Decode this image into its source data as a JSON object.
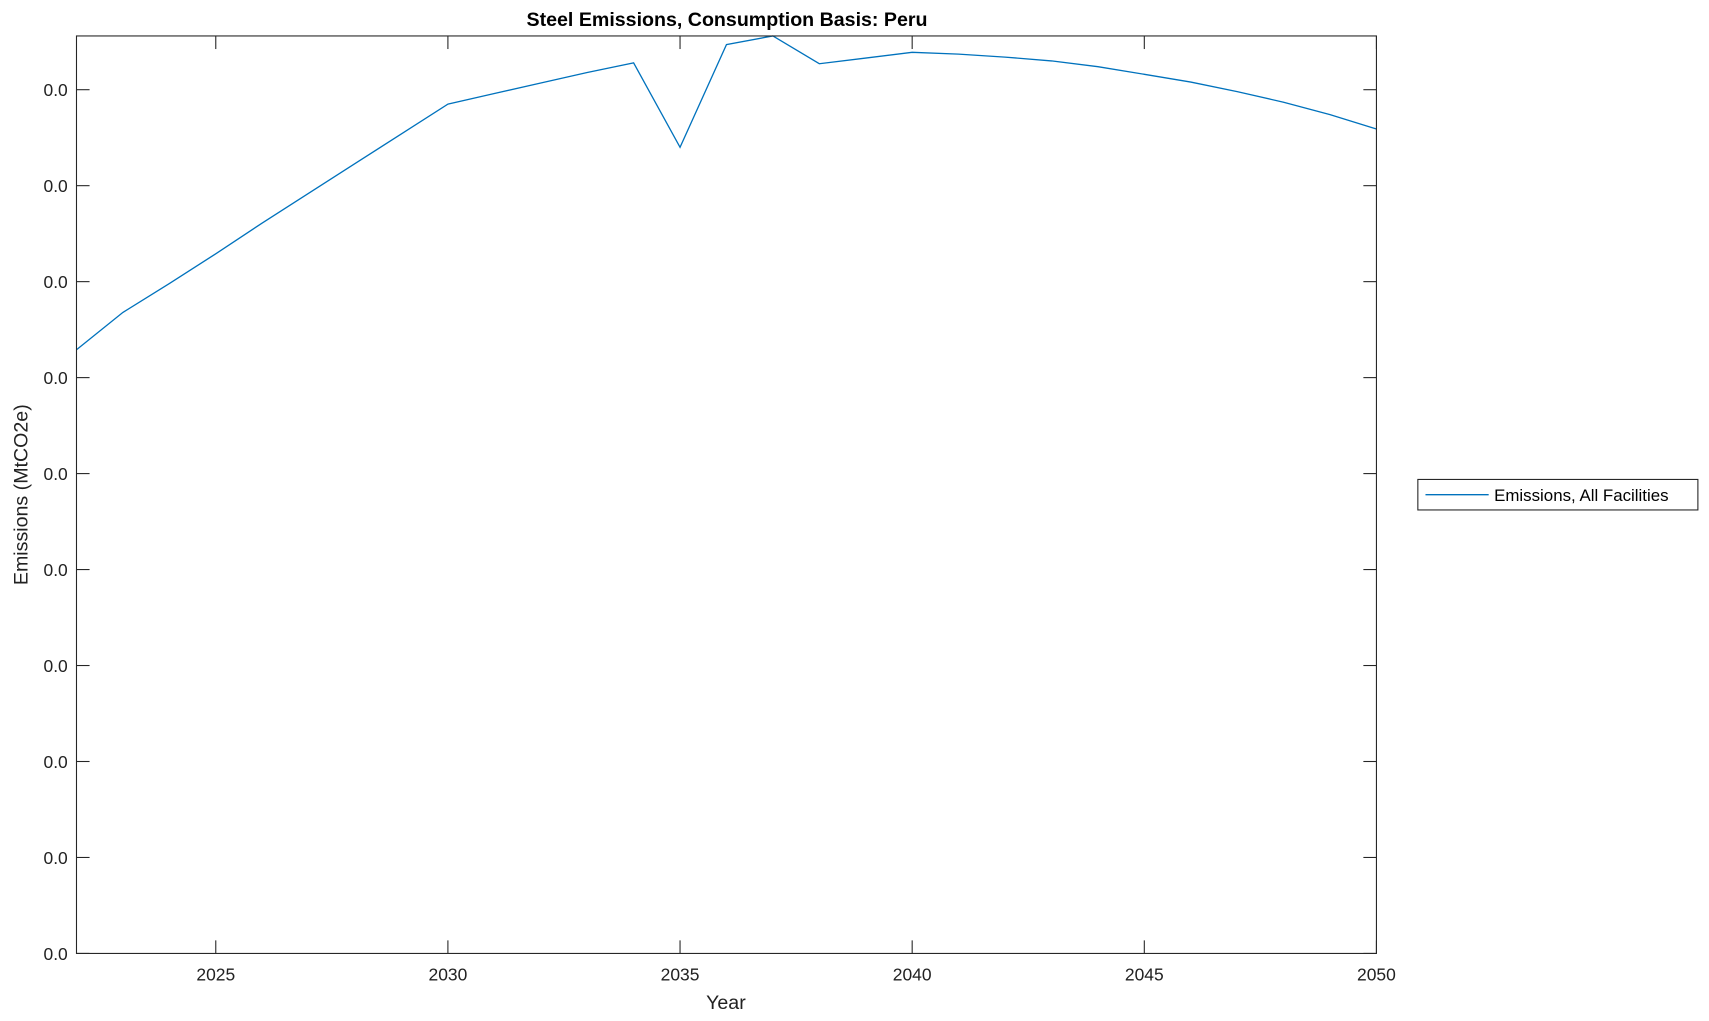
{
  "chart_data": {
    "type": "line",
    "title": "Steel Emissions, Consumption Basis: Peru",
    "xlabel": "Year",
    "ylabel": "Emissions (MtCO2e)",
    "xlim": [
      2022,
      2050
    ],
    "ylim": [
      0,
      0.00956
    ],
    "xticks": [
      2025,
      2030,
      2035,
      2040,
      2045,
      2050
    ],
    "xtick_labels": [
      "2025",
      "2030",
      "2035",
      "2040",
      "2045",
      "2050"
    ],
    "yticks": [
      0,
      0.001,
      0.002,
      0.003,
      0.004,
      0.005,
      0.006,
      0.007,
      0.008,
      0.009
    ],
    "ytick_labels": [
      "0.0",
      "0.0",
      "0.0",
      "0.0",
      "0.0",
      "0.0",
      "0.0",
      "0.0",
      "0.0",
      "0.0"
    ],
    "grid": false,
    "legend_placement": "outside-right",
    "series": [
      {
        "name": "Emissions, All Facilities",
        "color": "#0072BD",
        "x": [
          2022,
          2023,
          2024,
          2025,
          2026,
          2027,
          2028,
          2029,
          2030,
          2031,
          2032,
          2033,
          2034,
          2035,
          2036,
          2037,
          2038,
          2039,
          2040,
          2041,
          2042,
          2043,
          2044,
          2045,
          2046,
          2047,
          2048,
          2049,
          2050
        ],
        "values": [
          0.00629,
          0.00668,
          0.00698,
          0.00729,
          0.00761,
          0.00792,
          0.00823,
          0.00854,
          0.00885,
          0.00896,
          0.00907,
          0.00918,
          0.00928,
          0.0084,
          0.00947,
          0.00956,
          0.00927,
          0.00933,
          0.00939,
          0.00937,
          0.00934,
          0.0093,
          0.00924,
          0.00916,
          0.00908,
          0.00898,
          0.00887,
          0.00874,
          0.00859
        ]
      }
    ]
  }
}
